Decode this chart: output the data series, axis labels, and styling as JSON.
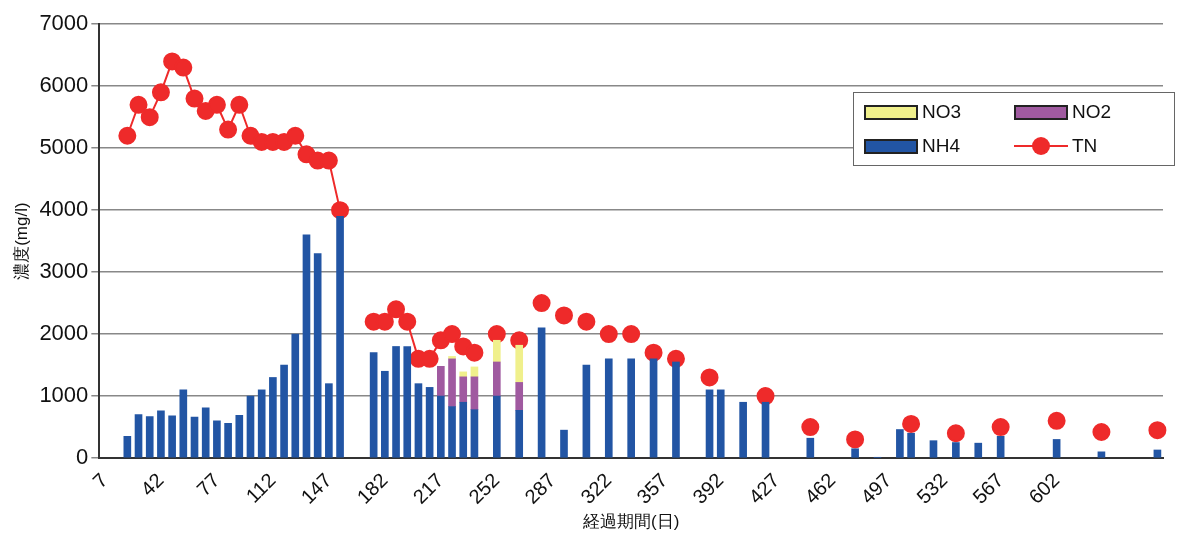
{
  "chart_data": {
    "type": "bar",
    "stacked": true,
    "xlabel": "経過期間(日)",
    "ylabel": "濃度(mg/l)",
    "categories": [
      "7",
      null,
      null,
      null,
      null,
      "42",
      null,
      null,
      null,
      null,
      "77",
      null,
      null,
      null,
      null,
      "112",
      null,
      null,
      null,
      null,
      "147",
      null,
      null,
      null,
      null,
      "182",
      null,
      null,
      null,
      null,
      "217",
      null,
      null,
      null,
      null,
      "252",
      null,
      null,
      null,
      null,
      "287",
      null,
      null,
      null,
      null,
      "322",
      null,
      null,
      null,
      null,
      "357",
      null,
      null,
      null,
      null,
      "392",
      null,
      null,
      null,
      null,
      "427",
      null,
      null,
      null,
      null,
      "462",
      null,
      null,
      null,
      null,
      "497",
      null,
      null,
      null,
      null,
      "532",
      null,
      null,
      null,
      null,
      "567",
      null,
      null,
      null,
      null,
      "602",
      null,
      null,
      null,
      null,
      null,
      null,
      null,
      null,
      null
    ],
    "series": [
      {
        "name": "NH4",
        "color": "#2255a4",
        "values": [
          null,
          null,
          350,
          700,
          670,
          760,
          680,
          1100,
          660,
          810,
          600,
          560,
          690,
          1000,
          1100,
          1300,
          1500,
          2000,
          3600,
          3300,
          1200,
          3900,
          null,
          null,
          1700,
          1400,
          1800,
          1800,
          1200,
          1140,
          1000,
          830,
          900,
          780,
          null,
          1000,
          null,
          770,
          null,
          2100,
          null,
          450,
          null,
          1500,
          null,
          1600,
          null,
          1600,
          null,
          1600,
          null,
          1550,
          null,
          null,
          1100,
          1100,
          null,
          900,
          null,
          900,
          null,
          null,
          null,
          320,
          null,
          null,
          null,
          150,
          null,
          10,
          null,
          460,
          400,
          null,
          280,
          null,
          250,
          null,
          240,
          null,
          350,
          null,
          null,
          null,
          null,
          300,
          null,
          null,
          null,
          100,
          null,
          null,
          null,
          null,
          130
        ]
      },
      {
        "name": "NO2",
        "color": "#a05aa0",
        "values": [
          null,
          null,
          null,
          null,
          null,
          null,
          null,
          null,
          null,
          null,
          null,
          null,
          null,
          null,
          null,
          null,
          null,
          null,
          null,
          null,
          null,
          null,
          null,
          null,
          null,
          null,
          null,
          null,
          null,
          null,
          480,
          770,
          410,
          530,
          null,
          550,
          null,
          450,
          null,
          null,
          null,
          null,
          null,
          null,
          null,
          null,
          null,
          null,
          null,
          null,
          null,
          null,
          null,
          null,
          null,
          null,
          null,
          null,
          null,
          null,
          null,
          null,
          null,
          null,
          null,
          null,
          null,
          null,
          null,
          null,
          null,
          null,
          null,
          null,
          null,
          null,
          null,
          null,
          null,
          null,
          null,
          null,
          null,
          null,
          null,
          null,
          null,
          null,
          null,
          null,
          null,
          null,
          null,
          null,
          null
        ]
      },
      {
        "name": "NO3",
        "color": "#f0f08c",
        "values": [
          null,
          null,
          null,
          null,
          null,
          null,
          null,
          null,
          null,
          null,
          null,
          null,
          null,
          null,
          null,
          null,
          null,
          null,
          null,
          null,
          null,
          null,
          null,
          null,
          null,
          null,
          null,
          null,
          null,
          null,
          null,
          40,
          80,
          160,
          null,
          350,
          null,
          600,
          null,
          null,
          null,
          null,
          null,
          null,
          null,
          null,
          null,
          null,
          null,
          null,
          null,
          null,
          null,
          null,
          null,
          null,
          null,
          null,
          null,
          null,
          null,
          null,
          null,
          null,
          null,
          null,
          null,
          null,
          null,
          null,
          null,
          null,
          null,
          null,
          null,
          null,
          null,
          null,
          null,
          null,
          null,
          null,
          null,
          null,
          null,
          null,
          null,
          null,
          null,
          null,
          null,
          null,
          null,
          null,
          null
        ]
      },
      {
        "type": "line",
        "name": "TN",
        "color": "#ee2a2a",
        "marker": "circle",
        "values": [
          null,
          null,
          5200,
          5700,
          5500,
          5900,
          6400,
          6300,
          5800,
          5600,
          5700,
          5300,
          5700,
          5200,
          5100,
          5100,
          5100,
          5200,
          4900,
          4800,
          4800,
          4000,
          null,
          null,
          2200,
          2200,
          2400,
          2200,
          1600,
          1600,
          1900,
          2000,
          1800,
          1700,
          null,
          2000,
          null,
          1900,
          null,
          2500,
          null,
          2300,
          null,
          2200,
          null,
          2000,
          null,
          2000,
          null,
          1700,
          null,
          1600,
          null,
          null,
          1300,
          null,
          null,
          null,
          null,
          1000,
          null,
          null,
          null,
          500,
          null,
          null,
          null,
          300,
          null,
          null,
          null,
          null,
          550,
          null,
          null,
          null,
          400,
          null,
          null,
          null,
          500,
          null,
          null,
          null,
          null,
          600,
          null,
          null,
          null,
          420,
          null,
          null,
          null,
          null,
          450
        ]
      }
    ],
    "ylim": [
      0,
      7000
    ],
    "yticks": [
      0,
      1000,
      2000,
      3000,
      4000,
      5000,
      6000,
      7000
    ],
    "grid": "y",
    "legend": "top right"
  }
}
